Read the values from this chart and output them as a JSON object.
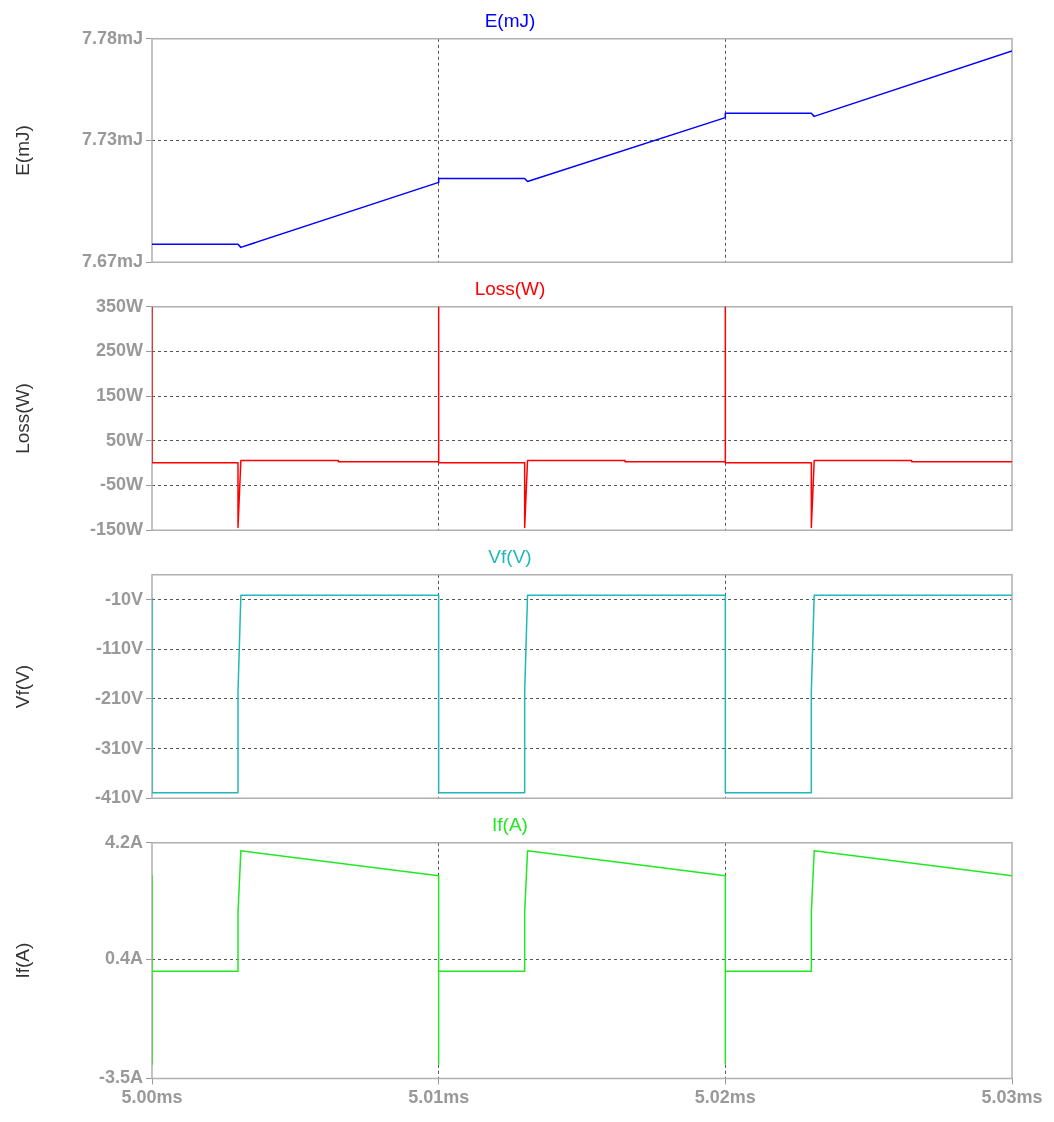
{
  "chart_data": [
    {
      "type": "line",
      "title": "E(mJ)",
      "ylabel": "E(mJ)",
      "x": [
        5.0,
        5.003,
        5.0031,
        5.01,
        5.01,
        5.013,
        5.0131,
        5.02,
        5.02,
        5.023,
        5.0231,
        5.03
      ],
      "series": [
        {
          "color": "#0000ff",
          "values": [
            7.6788,
            7.6788,
            7.6773,
            7.7093,
            7.7112,
            7.7112,
            7.7097,
            7.7412,
            7.7433,
            7.7433,
            7.7418,
            7.774
          ]
        }
      ],
      "xlim": [
        5.0,
        5.03
      ],
      "xticks": [
        5.0,
        5.01,
        5.02,
        5.03
      ],
      "ylim": [
        7.67,
        7.78
      ],
      "yticks": [
        {
          "value": 7.67,
          "label": "7.67mJ"
        },
        {
          "value": 7.73,
          "label": "7.73mJ"
        },
        {
          "value": 7.78,
          "label": "7.78mJ"
        }
      ],
      "grid": true,
      "tick_labels": "y"
    },
    {
      "type": "line",
      "title": "Loss(W)",
      "ylabel": "Loss(W)",
      "x": [
        5.0,
        5.0,
        5.003,
        5.003,
        5.0031,
        5.0065,
        5.0065,
        5.01,
        5.01,
        5.01,
        5.013,
        5.013,
        5.0131,
        5.0165,
        5.0165,
        5.02,
        5.02,
        5.02,
        5.023,
        5.023,
        5.0231,
        5.0265,
        5.0265,
        5.03
      ],
      "series": [
        {
          "color": "#ff0000",
          "values": [
            350,
            1,
            1,
            -144,
            6,
            6,
            3,
            3,
            350,
            1,
            1,
            -144,
            6,
            6,
            3,
            3,
            350,
            1,
            1,
            -144,
            6,
            6,
            3,
            3
          ]
        }
      ],
      "xlim": [
        5.0,
        5.03
      ],
      "xticks": [
        5.0,
        5.01,
        5.02,
        5.03
      ],
      "ylim": [
        -150,
        350
      ],
      "yticks": [
        {
          "value": -150,
          "label": "-150W"
        },
        {
          "value": -50,
          "label": "-50W"
        },
        {
          "value": 50,
          "label": "50W"
        },
        {
          "value": 150,
          "label": "150W"
        },
        {
          "value": 250,
          "label": "250W"
        },
        {
          "value": 350,
          "label": "350W"
        }
      ],
      "grid": true,
      "tick_labels": "y"
    },
    {
      "type": "line",
      "title": "Vf(V)",
      "ylabel": "Vf(V)",
      "x": [
        5.0,
        5.0,
        5.003,
        5.003,
        5.0031,
        5.01,
        5.01,
        5.013,
        5.013,
        5.0131,
        5.02,
        5.02,
        5.023,
        5.023,
        5.0231,
        5.03
      ],
      "series": [
        {
          "color": "#20b8b8",
          "values": [
            -7,
            -399,
            -399,
            -196,
            -1,
            -1,
            -399,
            -399,
            -196,
            -1,
            -1,
            -399,
            -399,
            -196,
            -1,
            -1
          ]
        }
      ],
      "xlim": [
        5.0,
        5.03
      ],
      "xticks": [
        5.0,
        5.01,
        5.02,
        5.03
      ],
      "ylim": [
        -410,
        40
      ],
      "yticks": [
        {
          "value": -410,
          "label": "-410V"
        },
        {
          "value": -310,
          "label": "-310V"
        },
        {
          "value": -210,
          "label": "-210V"
        },
        {
          "value": -110,
          "label": "-110V"
        },
        {
          "value": -10,
          "label": "-10V"
        }
      ],
      "grid": true,
      "tick_labels": "y"
    },
    {
      "type": "line",
      "title": "If(A)",
      "ylabel": "If(A)",
      "x": [
        5.0,
        5.0,
        5.0,
        5.003,
        5.003,
        5.0031,
        5.01,
        5.01,
        5.01,
        5.013,
        5.013,
        5.0131,
        5.02,
        5.02,
        5.02,
        5.023,
        5.023,
        5.0231,
        5.03
      ],
      "series": [
        {
          "color": "#22e822",
          "values": [
            3.12,
            -3.04,
            0,
            0,
            1.92,
            3.94,
            3.12,
            -3.04,
            0,
            0,
            1.92,
            3.94,
            3.12,
            -3.04,
            0,
            0,
            1.92,
            3.94,
            3.12
          ]
        }
      ],
      "xlim": [
        5.0,
        5.03
      ],
      "xticks": [
        {
          "value": 5.0,
          "label": "5.00ms"
        },
        {
          "value": 5.01,
          "label": "5.01ms"
        },
        {
          "value": 5.02,
          "label": "5.02ms"
        },
        {
          "value": 5.03,
          "label": "5.03ms"
        }
      ],
      "ylim": [
        -3.5,
        4.2
      ],
      "yticks": [
        {
          "value": -3.5,
          "label": "-3.5A"
        },
        {
          "value": 0.4,
          "label": "0.4A"
        },
        {
          "value": 4.2,
          "label": "4.2A"
        }
      ],
      "grid": true
    }
  ]
}
